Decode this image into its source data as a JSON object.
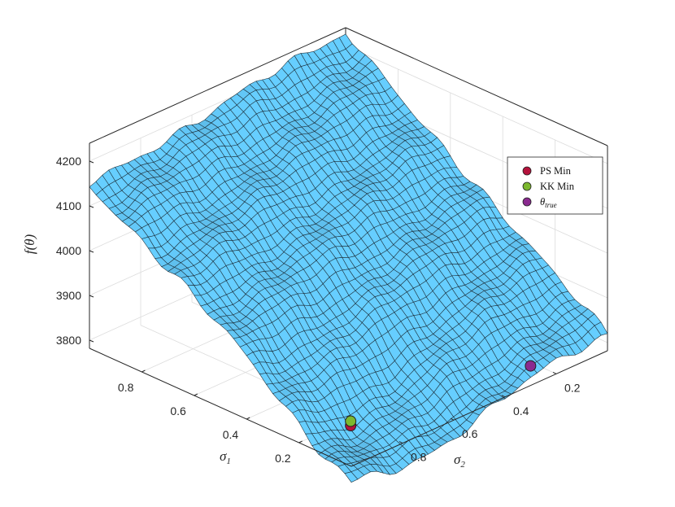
{
  "chart_data": {
    "type": "surface",
    "xlabel": "σ",
    "xlabel_sub": "1",
    "ylabel": "σ",
    "ylabel_sub": "2",
    "zlabel": "f(θ)",
    "x_axis_ticks": [
      "0.2",
      "0.4",
      "0.6",
      "0.8"
    ],
    "y_axis_ticks": [
      "0.2",
      "0.4",
      "0.6",
      "0.8"
    ],
    "z_axis_ticks": [
      "3800",
      "3900",
      "4000",
      "4100",
      "4200"
    ],
    "xlim": [
      0,
      1
    ],
    "ylim": [
      0,
      1
    ],
    "zlim": [
      3800,
      4200
    ],
    "grid": true,
    "surface_color": "#5bb8e4",
    "surface_edge_color": "#1a2a33",
    "surface_description_values": {
      "corner_sigma1_1_sigma2_1": 4150,
      "corner_sigma1_1_sigma2_0": 4230,
      "corner_sigma1_0_sigma2_0": 3815,
      "corner_sigma1_0_sigma2_1": 3780
    },
    "points": [
      {
        "name": "PS Min",
        "sigma1": 0.12,
        "sigma2": 0.88,
        "z": 3810,
        "color": "#b5123c"
      },
      {
        "name": "KK Min",
        "sigma1": 0.12,
        "sigma2": 0.88,
        "z": 3820,
        "color": "#7cb82f"
      },
      {
        "name": "θ",
        "name_sub": "true",
        "sigma1": 0.02,
        "sigma2": 0.28,
        "z": 3815,
        "color": "#8a2a8f"
      }
    ],
    "legend": {
      "placement": "right",
      "entries": [
        {
          "label": "PS Min",
          "color": "#b5123c"
        },
        {
          "label": "KK Min",
          "color": "#7cb82f"
        },
        {
          "label": "θ",
          "label_sub": "true",
          "color": "#8a2a8f"
        }
      ]
    }
  }
}
